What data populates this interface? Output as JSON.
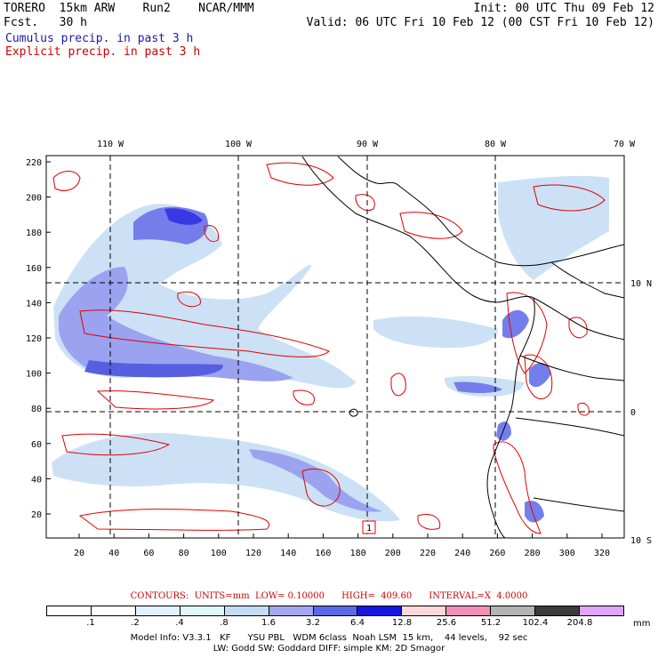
{
  "header": {
    "line1_left": "TORERO  15km ARW    Run2    NCAR/MMM",
    "line1_right": "Init: 00 UTC Thu 09 Feb 12",
    "line2_left": "Fcst.   30 h",
    "line2_right": "Valid: 06 UTC Fri 10 Feb 12 (00 CST Fri 10 Feb 12)",
    "line3": "Cumulus precip. in past 3 h",
    "line4": "Explicit precip. in past 3 h"
  },
  "map": {
    "top_lon_labels": [
      "110 W",
      "100 W",
      "90 W",
      "80 W",
      "70 W"
    ],
    "right_lat_labels": [
      "10 N",
      "0",
      "10 S"
    ],
    "left_grid_labels": [
      "220",
      "200",
      "180",
      "160",
      "140",
      "120",
      "100",
      "80",
      "60",
      "40",
      "20"
    ],
    "bottom_grid_labels": [
      "20",
      "40",
      "60",
      "80",
      "100",
      "120",
      "140",
      "160",
      "180",
      "200",
      "220",
      "240",
      "260",
      "280",
      "300",
      "320"
    ],
    "marker_label": "1",
    "colors": {
      "cumulus": "#3b3bd6",
      "explicit": "#e00000",
      "coast": "#000000"
    }
  },
  "contour_info": "CONTOURS:  UNITS=mm  LOW= 0.10000      HIGH=  409.60      INTERVAL=X  4.0000",
  "colorbar": {
    "labels": [
      ".1",
      ".2",
      ".4",
      ".8",
      "1.6",
      "3.2",
      "6.4",
      "12.8",
      "25.6",
      "51.2",
      "102.4",
      "204.8"
    ],
    "colors": [
      "#ffffff",
      "#ffffff",
      "#e4f0fc",
      "#e0f8f8",
      "#c4dcf4",
      "#a2a8f0",
      "#5c68e8",
      "#1616e0",
      "#fcd8d8",
      "#f490b8",
      "#b4b4b4",
      "#3c3c3c",
      "#e0a4fc"
    ],
    "unit": "mm"
  },
  "footer": {
    "line1": "Model Info: V3.3.1   KF      YSU PBL   WDM 6class  Noah LSM  15 km,    44 levels,    92 sec",
    "line2": "LW: Godd SW: Goddard DIFF: simple KM: 2D Smagor"
  }
}
